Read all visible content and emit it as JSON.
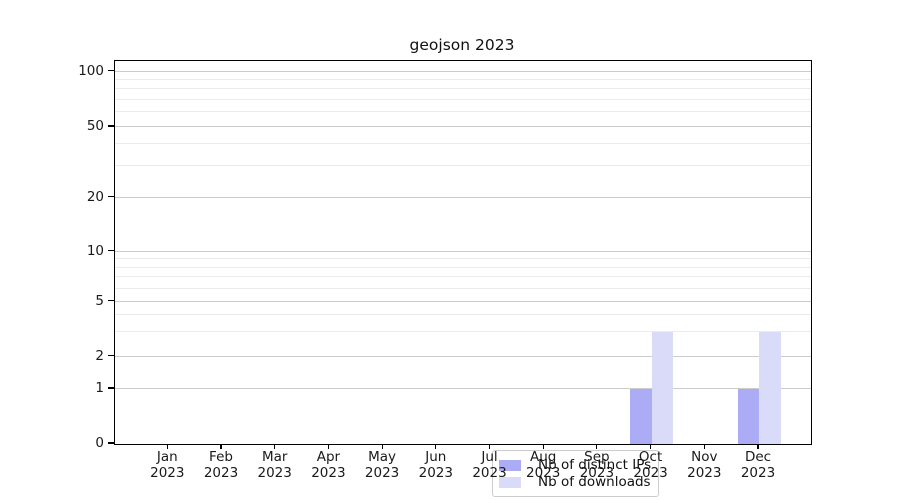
{
  "title": "geojson 2023",
  "legend": {
    "items": [
      {
        "label": "Nb of distinct IPs",
        "color": "#acacf6"
      },
      {
        "label": "Nb of downloads",
        "color": "#dadbf9"
      }
    ]
  },
  "axes": {
    "y_ticks": [
      {
        "label": "100",
        "value": 100
      },
      {
        "label": "50",
        "value": 50
      },
      {
        "label": "20",
        "value": 20
      },
      {
        "label": "10",
        "value": 10
      },
      {
        "label": "5",
        "value": 5
      },
      {
        "label": "2",
        "value": 2
      },
      {
        "label": "1",
        "value": 1
      },
      {
        "label": "0",
        "value": 0
      }
    ],
    "x_ticks": [
      {
        "line1": "Jan",
        "line2": "2023"
      },
      {
        "line1": "Feb",
        "line2": "2023"
      },
      {
        "line1": "Mar",
        "line2": "2023"
      },
      {
        "line1": "Apr",
        "line2": "2023"
      },
      {
        "line1": "May",
        "line2": "2023"
      },
      {
        "line1": "Jun",
        "line2": "2023"
      },
      {
        "line1": "Jul",
        "line2": "2023"
      },
      {
        "line1": "Aug",
        "line2": "2023"
      },
      {
        "line1": "Sep",
        "line2": "2023"
      },
      {
        "line1": "Oct",
        "line2": "2023"
      },
      {
        "line1": "Nov",
        "line2": "2023"
      },
      {
        "line1": "Dec",
        "line2": "2023"
      }
    ]
  },
  "chart_data": {
    "type": "bar",
    "title": "geojson 2023",
    "categories": [
      "Jan 2023",
      "Feb 2023",
      "Mar 2023",
      "Apr 2023",
      "May 2023",
      "Jun 2023",
      "Jul 2023",
      "Aug 2023",
      "Sep 2023",
      "Oct 2023",
      "Nov 2023",
      "Dec 2023"
    ],
    "series": [
      {
        "name": "Nb of distinct IPs",
        "color": "#acacf6",
        "values": [
          0,
          0,
          0,
          0,
          0,
          0,
          0,
          0,
          0,
          1,
          0,
          1
        ]
      },
      {
        "name": "Nb of downloads",
        "color": "#dadbf9",
        "values": [
          0,
          0,
          0,
          0,
          0,
          0,
          0,
          0,
          0,
          3,
          0,
          3
        ]
      }
    ],
    "xlabel": "",
    "ylabel": "",
    "yscale": "symlog-like",
    "ylim": [
      0,
      115
    ],
    "y_tick_values": [
      0,
      1,
      2,
      5,
      10,
      20,
      50,
      100
    ],
    "y_minor_values": [
      3,
      4,
      6,
      7,
      8,
      9,
      30,
      40,
      60,
      70,
      80,
      90
    ],
    "y_anchor_fracs": {
      "0": 0,
      "1": 0.1435,
      "2": 0.2278,
      "5": 0.3713,
      "10": 0.5025,
      "20": 0.6434,
      "50": 0.8278,
      "100": 0.9721
    },
    "grid": true,
    "legend_position": "lower center inside"
  }
}
